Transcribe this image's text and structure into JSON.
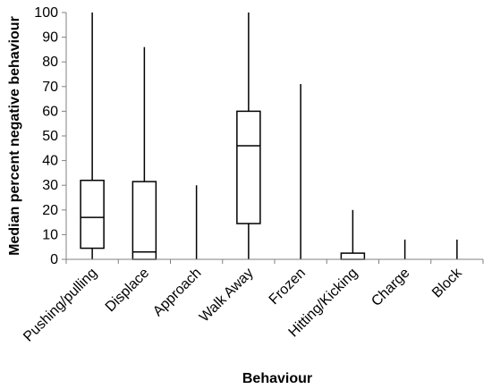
{
  "chart_data": {
    "type": "box",
    "title": "",
    "xlabel": "Behaviour",
    "ylabel": "Median percent negative behaviour",
    "ylim": [
      0,
      100
    ],
    "yticks": [
      0,
      10,
      20,
      30,
      40,
      50,
      60,
      70,
      80,
      90,
      100
    ],
    "grid": false,
    "legend": "none",
    "categories": [
      "Pushing/pulling",
      "Displace",
      "Approach",
      "Walk Away",
      "Frozen",
      "Hitting/Kicking",
      "Charge",
      "Block"
    ],
    "boxes": [
      {
        "min": 0,
        "q1": 4.5,
        "median": 17,
        "q3": 32,
        "max": 100
      },
      {
        "min": 0,
        "q1": 0,
        "median": 3,
        "q3": 31.5,
        "max": 86
      },
      {
        "min": 0,
        "q1": 0,
        "median": 0,
        "q3": 0,
        "max": 30
      },
      {
        "min": 0,
        "q1": 14.5,
        "median": 46,
        "q3": 60,
        "max": 100
      },
      {
        "min": 0,
        "q1": 0,
        "median": 0,
        "q3": 0,
        "max": 71
      },
      {
        "min": 0,
        "q1": 0,
        "median": 0,
        "q3": 2.5,
        "max": 20
      },
      {
        "min": 0,
        "q1": 0,
        "median": 0,
        "q3": 0,
        "max": 8
      },
      {
        "min": 0,
        "q1": 0,
        "median": 0,
        "q3": 0,
        "max": 8
      }
    ]
  }
}
